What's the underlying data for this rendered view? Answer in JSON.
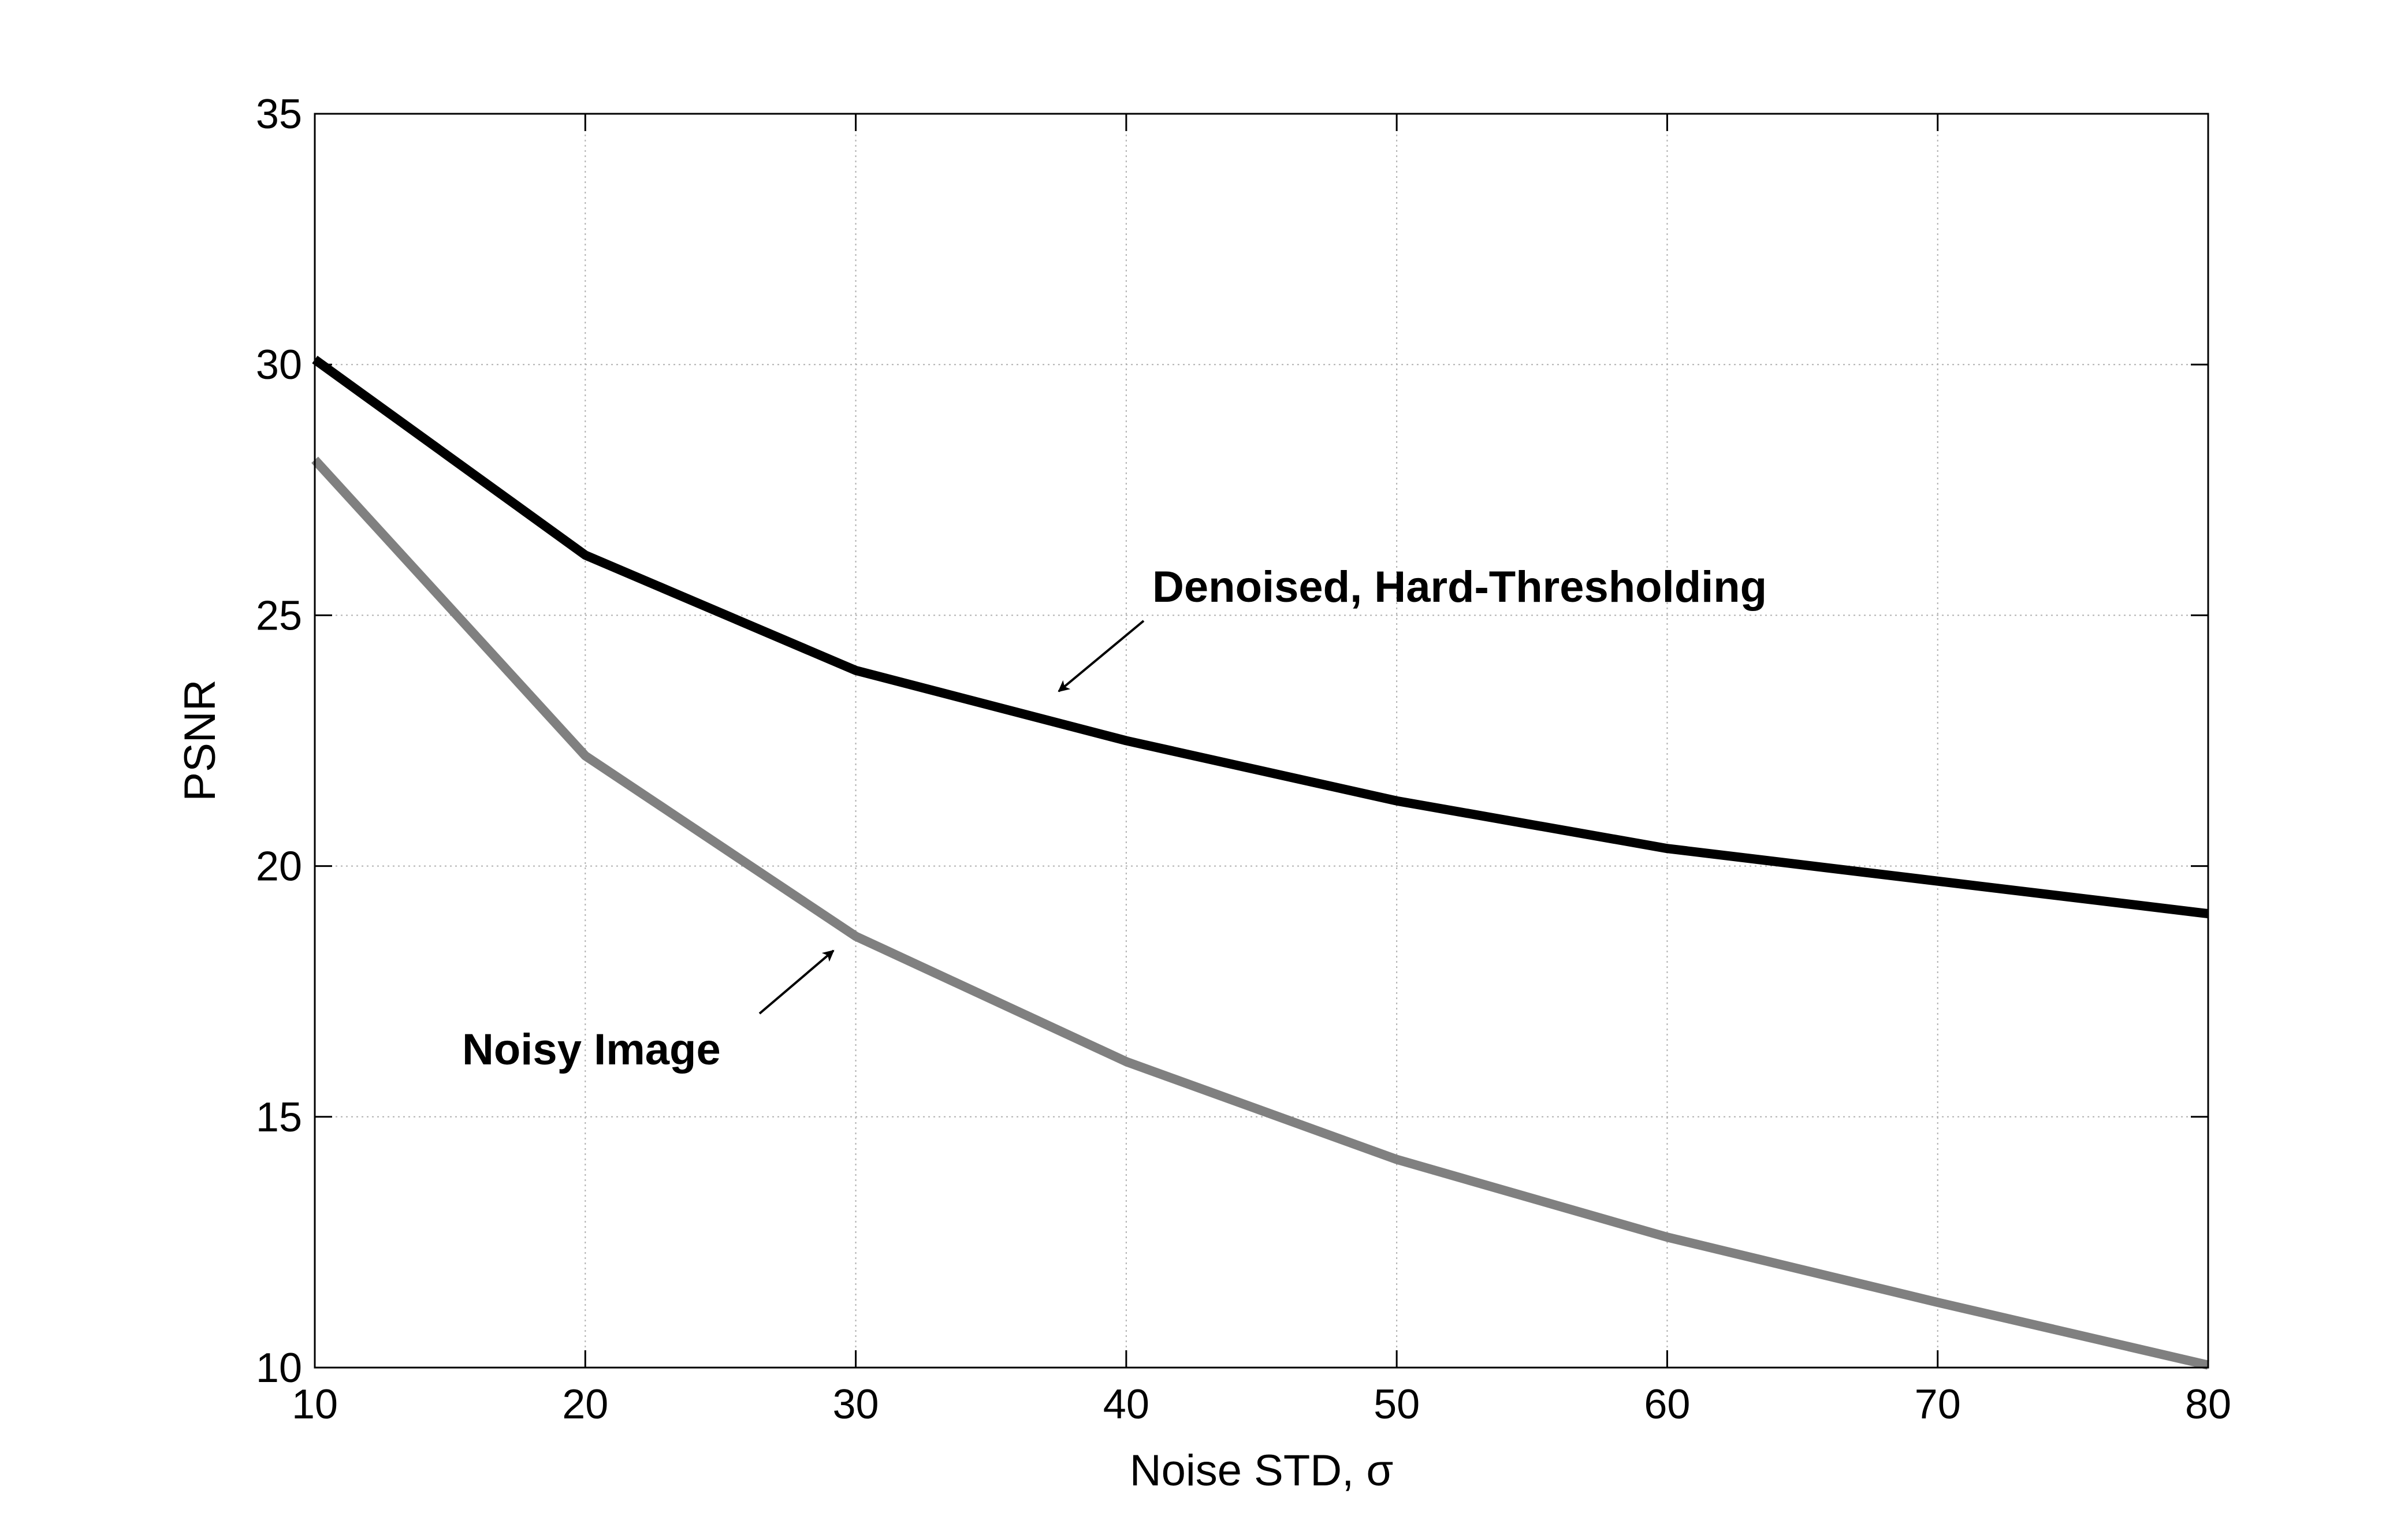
{
  "chart_data": {
    "type": "line",
    "x": [
      10,
      20,
      30,
      40,
      50,
      60,
      70,
      80
    ],
    "series": [
      {
        "values": [
          30.1,
          26.2,
          23.9,
          22.5,
          21.3,
          20.35,
          19.7,
          19.05
        ],
        "color": "#000000"
      },
      {
        "values": [
          28.1,
          22.2,
          18.6,
          16.1,
          14.15,
          12.6,
          11.3,
          10.05
        ],
        "color": "#808080"
      }
    ],
    "xlabel": "Noise STD, σ",
    "ylabel": "PSNR",
    "xlim": [
      10,
      80
    ],
    "ylim": [
      10,
      35
    ],
    "xticks": [
      10,
      20,
      30,
      40,
      50,
      60,
      70,
      80
    ],
    "yticks": [
      10,
      15,
      20,
      25,
      30,
      35
    ],
    "grid": true,
    "annotations": [
      {
        "text": "Denoised, Hard-Thresholding",
        "target_x": 37,
        "target_y": 23.4
      },
      {
        "text": "Noisy Image",
        "target_x": 29.5,
        "target_y": 18.5
      }
    ]
  }
}
